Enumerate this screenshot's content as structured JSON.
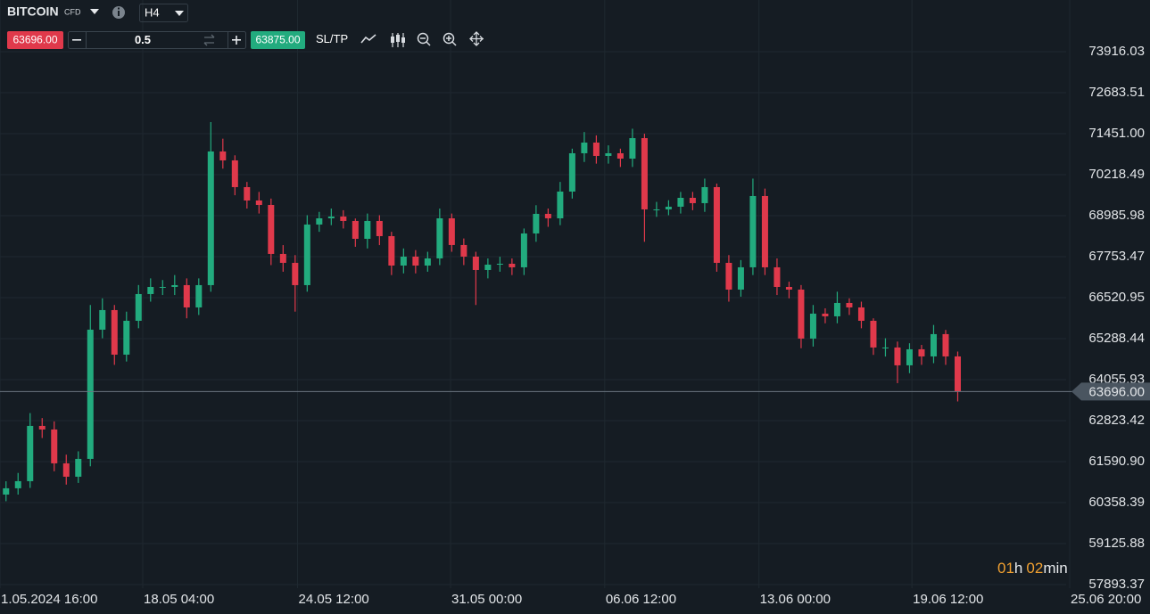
{
  "header": {
    "symbol": "BITCOIN",
    "tag": "CFD",
    "timeframe": "H4"
  },
  "order": {
    "sell": "63696.00",
    "quantity": "0.5",
    "buy": "63875.00",
    "sltp": "SL/TP"
  },
  "timer": [
    "01",
    "h",
    "02",
    "min"
  ],
  "chart_data": {
    "type": "candlestick",
    "up_color": "#22ab7e",
    "down_color": "#e0394b",
    "open": [
      60600,
      60789,
      61003,
      62664,
      62557,
      61539,
      61137,
      61673,
      65558,
      66147,
      64807,
      65825,
      66629,
      66843,
      66843,
      66897,
      66227,
      66897,
      70916,
      70648,
      69844,
      69442,
      69308,
      67835,
      67567,
      66897,
      68719,
      68906,
      68960,
      68826,
      68290,
      68826,
      68370,
      67486,
      67754,
      67486,
      67701,
      68906,
      68103,
      67754,
      67352,
      67513,
      67540,
      67433,
      68451,
      69040,
      68906,
      69710,
      70862,
      71183,
      70782,
      70862,
      70701,
      71317,
      69174,
      69174,
      69255,
      69522,
      69362,
      69844,
      67567,
      66763,
      67433,
      69576,
      67433,
      66843,
      66763,
      65290,
      66040,
      65959,
      66361,
      66227,
      65825,
      65022,
      65022,
      64486,
      64968,
      64754,
      65424,
      64754
    ],
    "high": [
      61000,
      61250,
      63050,
      62900,
      62800,
      61800,
      61900,
      66300,
      66500,
      66300,
      66100,
      66900,
      67100,
      67050,
      67200,
      67100,
      67100,
      71800,
      71300,
      70800,
      70000,
      69700,
      69500,
      68100,
      67800,
      69000,
      69100,
      69200,
      69150,
      68900,
      69050,
      69000,
      68500,
      68000,
      67950,
      67900,
      69200,
      69050,
      68300,
      67900,
      67700,
      67750,
      67700,
      68600,
      69300,
      69200,
      70000,
      71000,
      71500,
      71400,
      71100,
      71000,
      71600,
      71450,
      69400,
      69450,
      69700,
      69700,
      70100,
      69950,
      67800,
      67650,
      70100,
      69800,
      67700,
      67000,
      66900,
      66300,
      66200,
      66700,
      66500,
      66400,
      65900,
      65300,
      65200,
      65150,
      65100,
      65700,
      65550,
      64900
    ],
    "low": [
      60400,
      60600,
      60800,
      62300,
      61300,
      60900,
      60950,
      61450,
      65300,
      64500,
      64600,
      65600,
      66400,
      66600,
      66600,
      65900,
      66000,
      66700,
      70400,
      69600,
      69200,
      69050,
      67500,
      67300,
      66100,
      66700,
      68500,
      68700,
      68600,
      68050,
      68000,
      68100,
      67200,
      67250,
      67250,
      67300,
      67500,
      67900,
      67500,
      66300,
      67100,
      67300,
      67200,
      67200,
      68200,
      68650,
      68700,
      69500,
      70600,
      70550,
      70550,
      70450,
      70450,
      68200,
      68950,
      69000,
      69050,
      69150,
      69100,
      67300,
      66400,
      66550,
      67200,
      67200,
      66600,
      66500,
      65000,
      65050,
      65750,
      65750,
      66000,
      65600,
      64800,
      64750,
      63950,
      64250,
      64500,
      64550,
      64500,
      63400
    ],
    "close": [
      60789,
      61003,
      62664,
      62557,
      61539,
      61137,
      61673,
      65558,
      66147,
      64807,
      65825,
      66629,
      66843,
      66843,
      66897,
      66227,
      66897,
      70916,
      70648,
      69844,
      69442,
      69308,
      67835,
      67567,
      66897,
      68719,
      68906,
      68960,
      68826,
      68290,
      68826,
      68370,
      67486,
      67754,
      67486,
      67701,
      68906,
      68103,
      67754,
      67352,
      67513,
      67540,
      67433,
      68451,
      69040,
      68906,
      69710,
      70862,
      71183,
      70782,
      70862,
      70701,
      71317,
      69174,
      69174,
      69255,
      69522,
      69362,
      69844,
      67567,
      66763,
      67433,
      69576,
      67433,
      66843,
      66763,
      65290,
      66040,
      65959,
      66361,
      66227,
      65825,
      65022,
      65022,
      64486,
      64968,
      64754,
      65424,
      64754,
      63696
    ],
    "xlim": [
      -0.5,
      88
    ],
    "xticks": [
      {
        "value": -0.5,
        "label": "1.05.2024 16:00"
      },
      {
        "value": 11.35,
        "label": "18.05 04:00"
      },
      {
        "value": 24.2,
        "label": "24.05 12:00"
      },
      {
        "value": 36.9,
        "label": "31.05 00:00"
      },
      {
        "value": 49.7,
        "label": "06.06 12:00"
      },
      {
        "value": 62.5,
        "label": "13.06 00:00"
      },
      {
        "value": 75.2,
        "label": "19.06 12:00"
      },
      {
        "value": 88.3,
        "label": "25.06 20:00"
      }
    ],
    "ylim": [
      57893.37,
      73916.03
    ],
    "yticks": [
      73916.03,
      72683.51,
      {
        "value": 71451,
        "label": "71451.00"
      },
      70218.49,
      68985.98,
      67753.47,
      66520.95,
      65288.44,
      64055.93,
      62823.42,
      {
        "value": 61590.9,
        "label": "61590.90"
      },
      60358.39,
      59125.88,
      57893.37
    ],
    "grid": true,
    "last_price": {
      "value": 63696,
      "label": "63696.00"
    }
  }
}
